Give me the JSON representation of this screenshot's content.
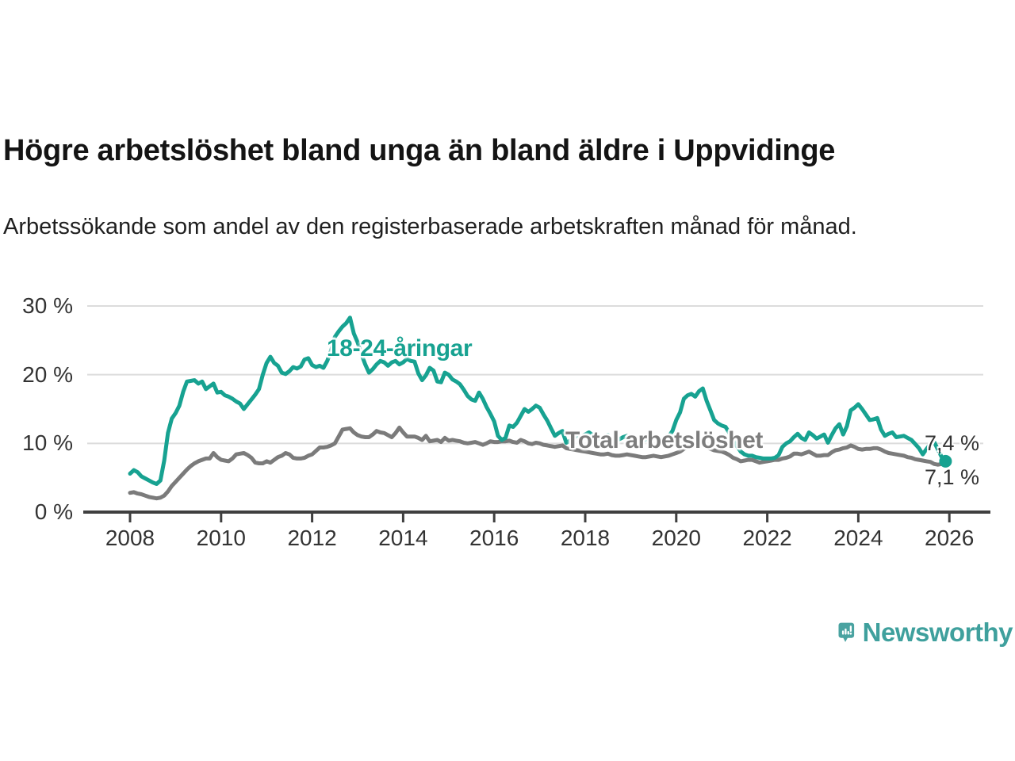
{
  "header": {
    "title": "Högre arbetslöshet bland unga än bland äldre i Uppvidinge",
    "subtitle": "Arbetssökande som andel av den registerbaserade arbetskraften månad för månad."
  },
  "chart_data": {
    "type": "line",
    "unit": "%",
    "frequency": "monthly",
    "x_start": "2008-01",
    "x_end": "2025-12",
    "x_tick_years": [
      2008,
      2010,
      2012,
      2014,
      2016,
      2018,
      2020,
      2022,
      2024,
      2026
    ],
    "y_ticks": [
      {
        "value": 0,
        "label": "0 %"
      },
      {
        "value": 10,
        "label": "10 %"
      },
      {
        "value": 20,
        "label": "20 %"
      },
      {
        "value": 30,
        "label": "30 %"
      }
    ],
    "ylim": [
      0,
      32
    ],
    "grid": "horizontal",
    "legend_position": "inline-labels",
    "series": [
      {
        "name": "18-24-åringar",
        "color": "#17a291",
        "end_marker": true,
        "values": [
          5.6,
          6.1,
          5.8,
          5.2,
          4.9,
          4.6,
          4.3,
          4.1,
          4.6,
          7.5,
          11.5,
          13.6,
          14.4,
          15.5,
          17.5,
          19.0,
          19.1,
          19.2,
          18.7,
          19.0,
          17.9,
          18.3,
          18.7,
          17.4,
          17.5,
          17.0,
          16.8,
          16.5,
          16.1,
          15.8,
          15.0,
          15.7,
          16.4,
          17.1,
          17.9,
          20.0,
          21.7,
          22.6,
          21.7,
          21.3,
          20.3,
          20.1,
          20.5,
          21.1,
          20.9,
          21.2,
          22.2,
          22.4,
          21.4,
          21.1,
          21.3,
          21.0,
          22.0,
          23.5,
          25.5,
          26.3,
          27.0,
          27.5,
          28.3,
          26.0,
          24.7,
          23.0,
          21.5,
          20.3,
          20.8,
          21.5,
          22.0,
          21.8,
          21.3,
          21.8,
          22.0,
          21.5,
          21.8,
          22.3,
          22.0,
          21.9,
          20.2,
          19.2,
          19.9,
          21.0,
          20.6,
          19.0,
          18.9,
          20.3,
          20.0,
          19.3,
          19.0,
          18.6,
          17.8,
          16.9,
          16.4,
          16.2,
          17.4,
          16.5,
          15.3,
          14.3,
          13.2,
          11.1,
          10.5,
          10.8,
          12.6,
          12.4,
          13.0,
          14.0,
          15.0,
          14.6,
          15.0,
          15.5,
          15.2,
          14.2,
          13.3,
          12.2,
          11.1,
          11.5,
          11.8,
          10.1,
          10.4,
          10.8,
          11.2,
          11.0,
          11.3,
          11.6,
          11.2,
          10.8,
          10.6,
          10.9,
          11.2,
          10.7,
          10.4,
          10.6,
          10.9,
          11.1,
          11.0,
          10.7,
          10.5,
          10.3,
          10.6,
          10.9,
          11.1,
          10.8,
          10.6,
          10.8,
          11.0,
          11.8,
          13.4,
          14.5,
          16.5,
          17.0,
          17.2,
          16.8,
          17.6,
          18.0,
          16.2,
          14.8,
          13.4,
          12.9,
          12.6,
          12.4,
          11.5,
          10.5,
          9.6,
          8.8,
          8.4,
          8.2,
          8.2,
          8.0,
          7.9,
          7.8,
          7.8,
          7.8,
          7.9,
          8.3,
          9.5,
          10.0,
          10.3,
          10.9,
          11.4,
          10.8,
          10.5,
          11.6,
          11.2,
          10.7,
          11.0,
          11.3,
          10.1,
          11.2,
          12.2,
          12.8,
          11.3,
          12.5,
          14.8,
          15.2,
          15.7,
          15.0,
          14.2,
          13.4,
          13.5,
          13.7,
          12.0,
          11.1,
          11.4,
          11.6,
          10.9,
          11.0,
          11.1,
          10.8,
          10.5,
          9.9,
          9.3,
          8.4,
          9.2,
          9.9,
          10.2,
          9.1,
          8.0,
          7.4
        ]
      },
      {
        "name": "Total arbetslöshet",
        "color": "#7b7b7b",
        "end_marker": false,
        "values": [
          2.8,
          2.9,
          2.7,
          2.6,
          2.4,
          2.2,
          2.1,
          2.0,
          2.1,
          2.4,
          3.0,
          3.8,
          4.4,
          5.0,
          5.6,
          6.2,
          6.7,
          7.1,
          7.4,
          7.6,
          7.8,
          7.8,
          8.6,
          8.0,
          7.6,
          7.5,
          7.4,
          7.8,
          8.4,
          8.5,
          8.6,
          8.3,
          7.9,
          7.2,
          7.1,
          7.1,
          7.4,
          7.2,
          7.6,
          8.0,
          8.2,
          8.6,
          8.4,
          7.9,
          7.8,
          7.8,
          7.9,
          8.2,
          8.4,
          8.9,
          9.4,
          9.4,
          9.5,
          9.7,
          10.0,
          11.0,
          12.0,
          12.1,
          12.2,
          11.6,
          11.2,
          11.0,
          10.9,
          10.9,
          11.3,
          11.8,
          11.6,
          11.5,
          11.2,
          10.9,
          11.5,
          12.3,
          11.6,
          11.0,
          11.0,
          11.0,
          10.8,
          10.5,
          11.1,
          10.3,
          10.4,
          10.5,
          10.2,
          10.8,
          10.4,
          10.5,
          10.4,
          10.3,
          10.1,
          10.0,
          10.1,
          10.2,
          10.0,
          9.8,
          10.0,
          10.3,
          10.2,
          10.2,
          10.3,
          10.3,
          10.4,
          10.2,
          10.1,
          10.5,
          10.3,
          10.0,
          9.9,
          10.1,
          10.0,
          9.8,
          9.7,
          9.6,
          9.5,
          9.6,
          9.7,
          9.3,
          9.2,
          9.1,
          9.0,
          8.9,
          8.8,
          8.7,
          8.6,
          8.5,
          8.4,
          8.4,
          8.5,
          8.3,
          8.2,
          8.2,
          8.3,
          8.4,
          8.3,
          8.2,
          8.1,
          8.0,
          8.0,
          8.1,
          8.2,
          8.1,
          8.0,
          8.1,
          8.2,
          8.4,
          8.6,
          8.8,
          9.2,
          9.5,
          9.7,
          9.8,
          9.8,
          9.7,
          9.5,
          9.2,
          9.0,
          8.9,
          8.8,
          8.6,
          8.3,
          7.9,
          7.7,
          7.4,
          7.5,
          7.6,
          7.6,
          7.4,
          7.2,
          7.3,
          7.4,
          7.5,
          7.6,
          7.6,
          7.8,
          7.9,
          8.1,
          8.5,
          8.5,
          8.4,
          8.6,
          8.8,
          8.5,
          8.2,
          8.2,
          8.3,
          8.3,
          8.7,
          9.0,
          9.1,
          9.3,
          9.4,
          9.7,
          9.5,
          9.2,
          9.1,
          9.2,
          9.2,
          9.3,
          9.3,
          9.1,
          8.8,
          8.6,
          8.5,
          8.4,
          8.3,
          8.2,
          8.0,
          7.9,
          7.7,
          7.6,
          7.5,
          7.4,
          7.3,
          7.0,
          6.9,
          7.0,
          7.1
        ]
      }
    ],
    "annotations": {
      "end_value_youth": "7,4 %",
      "end_value_total": "7,1 %"
    },
    "colors": {
      "grid": "#dcdcdc",
      "axis": "#3f3f3f",
      "tick_text": "#333333"
    }
  },
  "footer": {
    "logo_text": "Newsworthy",
    "logo_color": "#3fa09d"
  }
}
